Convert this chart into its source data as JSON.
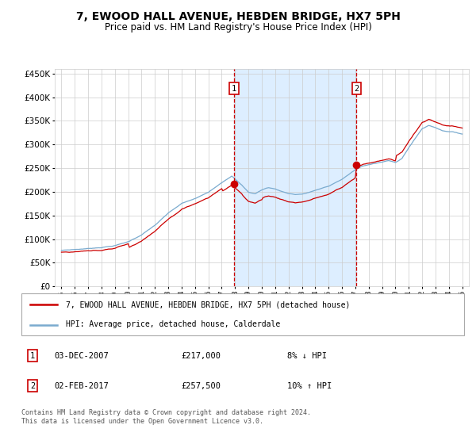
{
  "title": "7, EWOOD HALL AVENUE, HEBDEN BRIDGE, HX7 5PH",
  "subtitle": "Price paid vs. HM Land Registry's House Price Index (HPI)",
  "legend_line1": "7, EWOOD HALL AVENUE, HEBDEN BRIDGE, HX7 5PH (detached house)",
  "legend_line2": "HPI: Average price, detached house, Calderdale",
  "annotation1_date": "03-DEC-2007",
  "annotation1_price": "£217,000",
  "annotation1_pct": "8% ↓ HPI",
  "annotation2_date": "02-FEB-2017",
  "annotation2_price": "£257,500",
  "annotation2_pct": "10% ↑ HPI",
  "footer": "Contains HM Land Registry data © Crown copyright and database right 2024.\nThis data is licensed under the Open Government Licence v3.0.",
  "red_line_color": "#cc0000",
  "blue_line_color": "#7aabcf",
  "shade_color": "#ddeeff",
  "sale1_x": 2007.92,
  "sale2_x": 2017.09,
  "sale1_value": 217000,
  "sale2_value": 257500,
  "ylim": [
    0,
    460000
  ],
  "yticks": [
    0,
    50000,
    100000,
    150000,
    200000,
    250000,
    300000,
    350000,
    400000,
    450000
  ],
  "xlim_start": 1994.5,
  "xlim_end": 2025.5,
  "grid_color": "#cccccc",
  "title_fontsize": 10,
  "subtitle_fontsize": 8.5
}
